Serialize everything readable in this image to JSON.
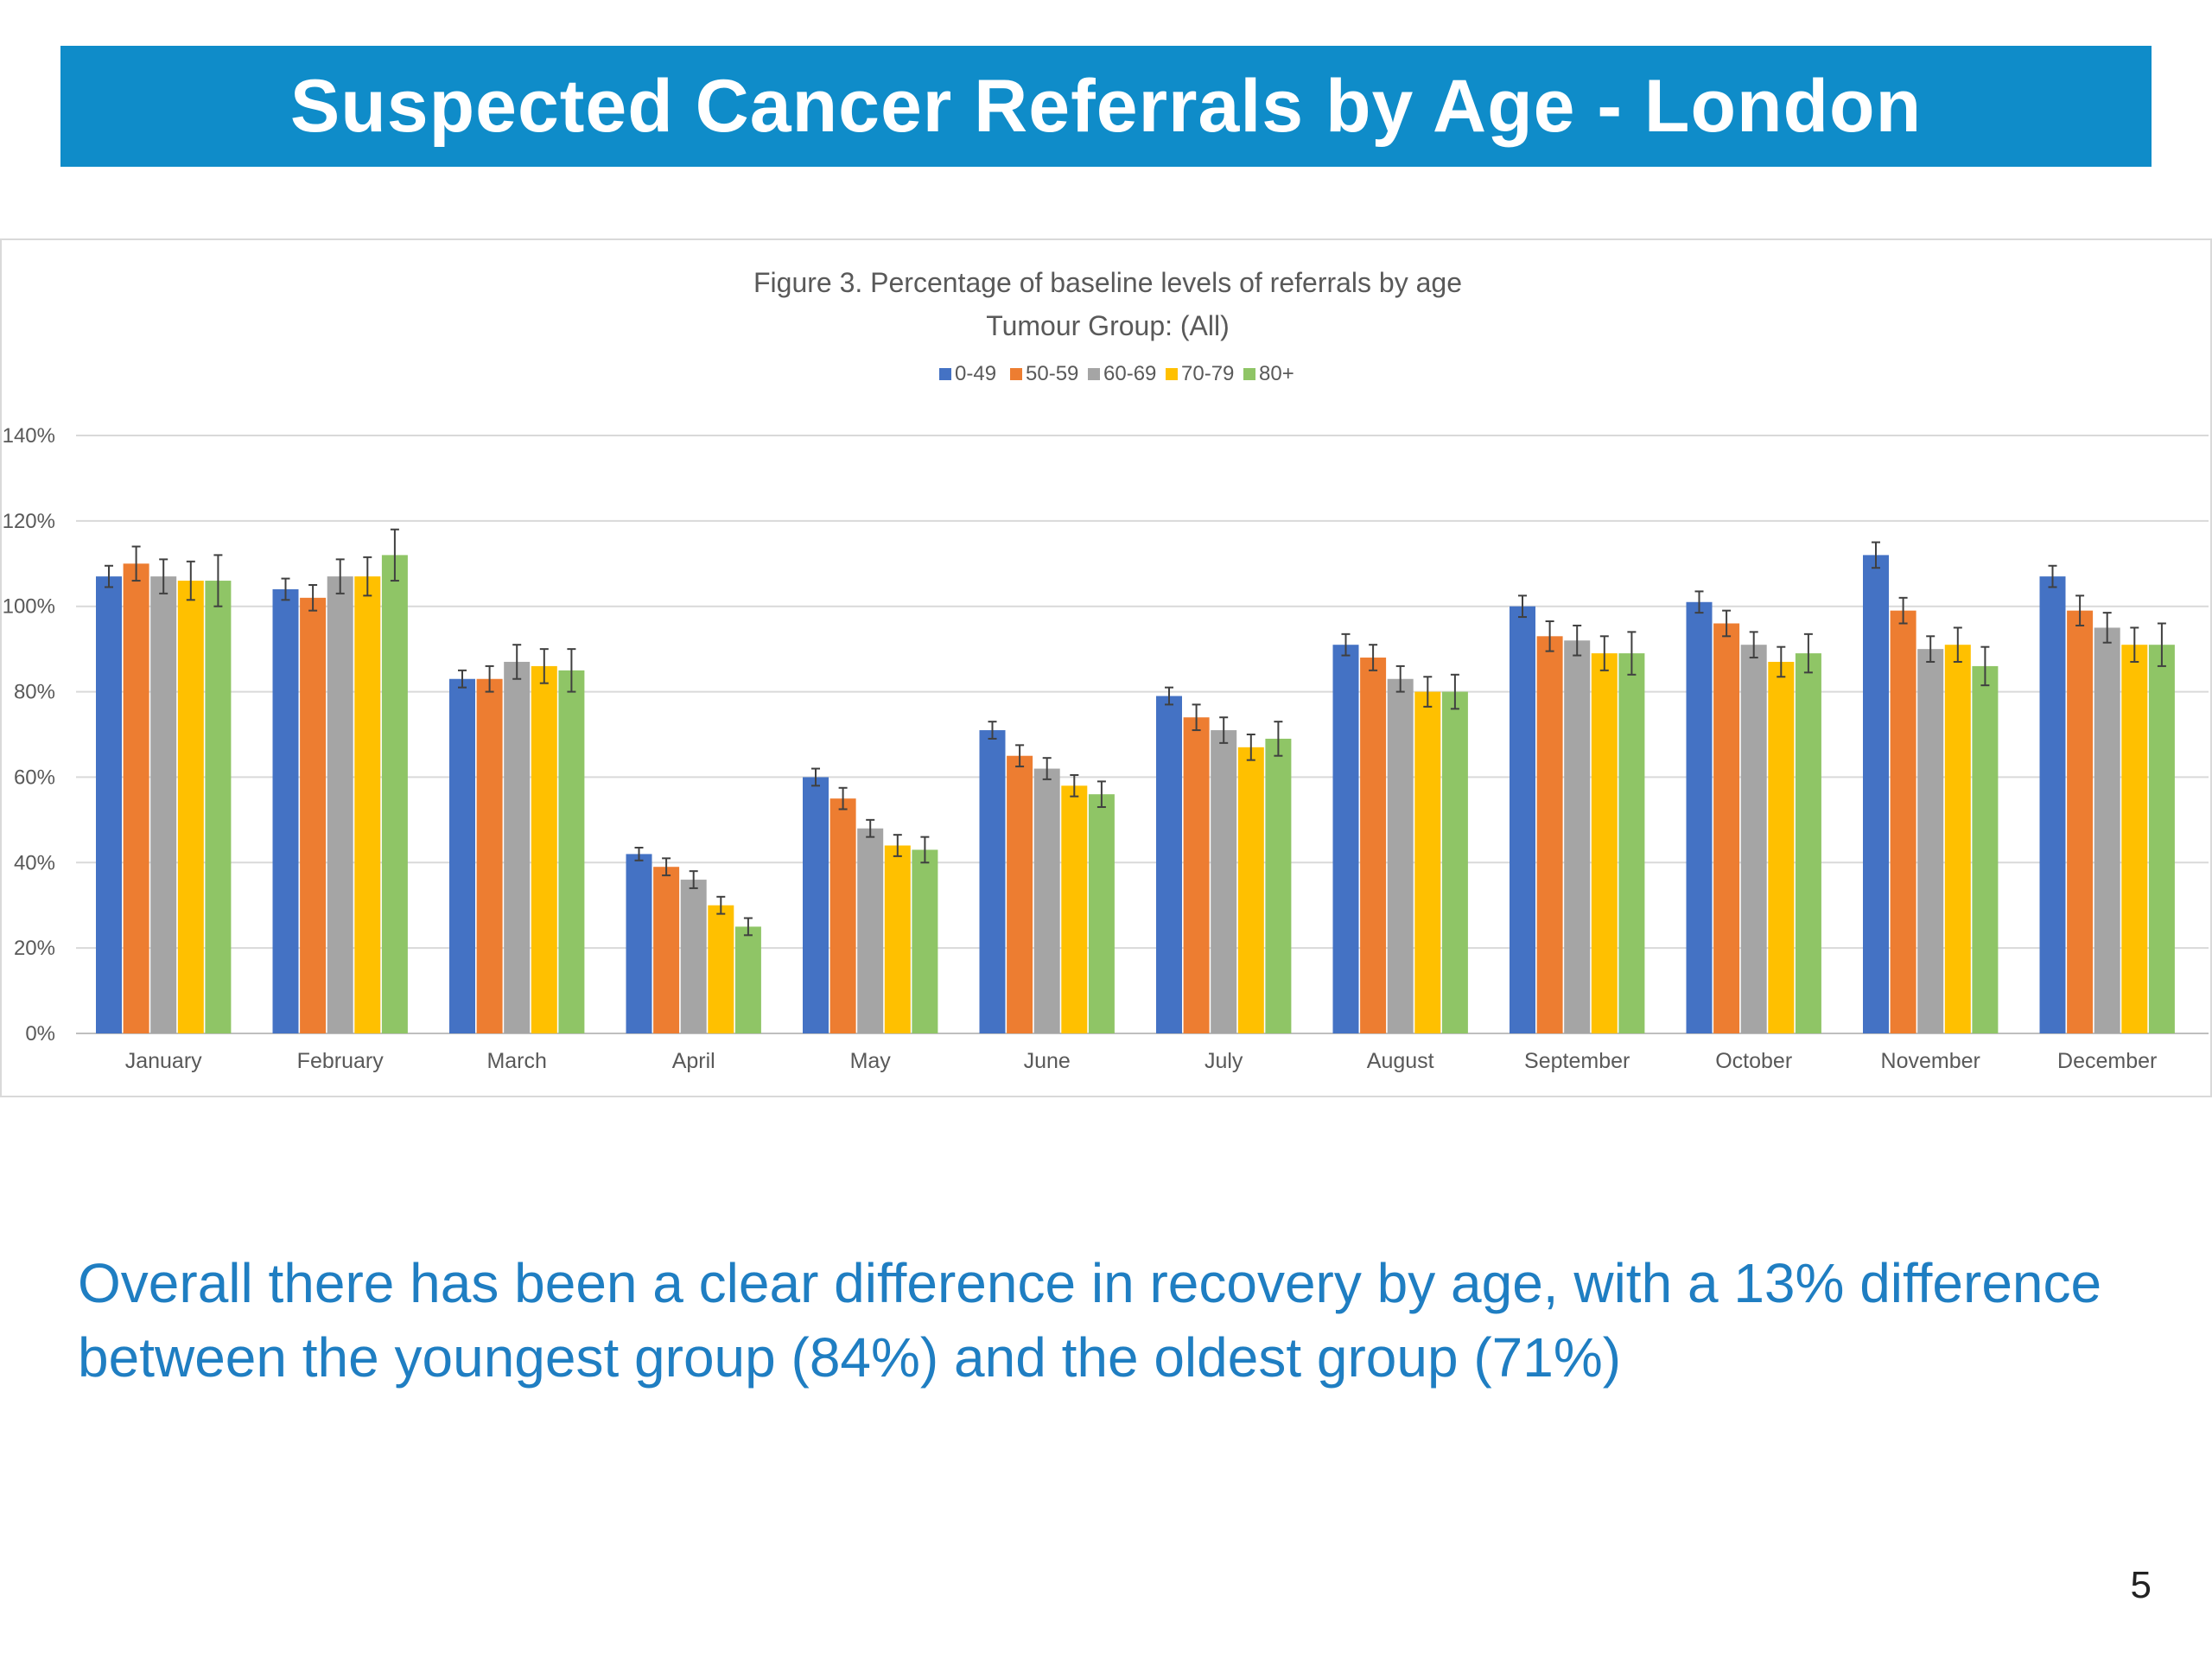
{
  "slide": {
    "title": "Suspected Cancer Referrals by Age - London",
    "summary": "Overall there has been a clear difference in recovery by age, with a 13% difference between the youngest group (84%) and the oldest group (71%)",
    "page_number": "5"
  },
  "chart_data": {
    "type": "bar",
    "title": "Figure 3. Percentage of baseline levels of referrals by age",
    "subtitle": "Tumour Group: (All)",
    "legend_position": "top",
    "grid": true,
    "ylim": [
      0,
      140
    ],
    "y_ticks": [
      0,
      20,
      40,
      60,
      80,
      100,
      120,
      140
    ],
    "y_tick_suffix": "%",
    "categories": [
      "January",
      "February",
      "March",
      "April",
      "May",
      "June",
      "July",
      "August",
      "September",
      "October",
      "November",
      "December"
    ],
    "series": [
      {
        "name": "0-49",
        "color": "#4472c4",
        "values": [
          107,
          104,
          83,
          42,
          60,
          71,
          79,
          91,
          100,
          101,
          112,
          107
        ],
        "errors": [
          2.5,
          2.5,
          2,
          1.5,
          2,
          2,
          2,
          2.5,
          2.5,
          2.5,
          3,
          2.5
        ]
      },
      {
        "name": "50-59",
        "color": "#ed7d31",
        "values": [
          110,
          102,
          83,
          39,
          55,
          65,
          74,
          88,
          93,
          96,
          99,
          99
        ],
        "errors": [
          4,
          3,
          3,
          2,
          2.5,
          2.5,
          3,
          3,
          3.5,
          3,
          3,
          3.5
        ]
      },
      {
        "name": "60-69",
        "color": "#a5a5a5",
        "values": [
          107,
          107,
          87,
          36,
          48,
          62,
          71,
          83,
          92,
          91,
          90,
          95
        ],
        "errors": [
          4,
          4,
          4,
          2,
          2,
          2.5,
          3,
          3,
          3.5,
          3,
          3,
          3.5
        ]
      },
      {
        "name": "70-79",
        "color": "#ffc000",
        "values": [
          106,
          107,
          86,
          30,
          44,
          58,
          67,
          80,
          89,
          87,
          91,
          91
        ],
        "errors": [
          4.5,
          4.5,
          4,
          2,
          2.5,
          2.5,
          3,
          3.5,
          4,
          3.5,
          4,
          4
        ]
      },
      {
        "name": "80+",
        "color": "#8fc566",
        "values": [
          106,
          112,
          85,
          25,
          43,
          56,
          69,
          80,
          89,
          89,
          86,
          91
        ],
        "errors": [
          6,
          6,
          5,
          2,
          3,
          3,
          4,
          4,
          5,
          4.5,
          4.5,
          5
        ]
      }
    ]
  }
}
